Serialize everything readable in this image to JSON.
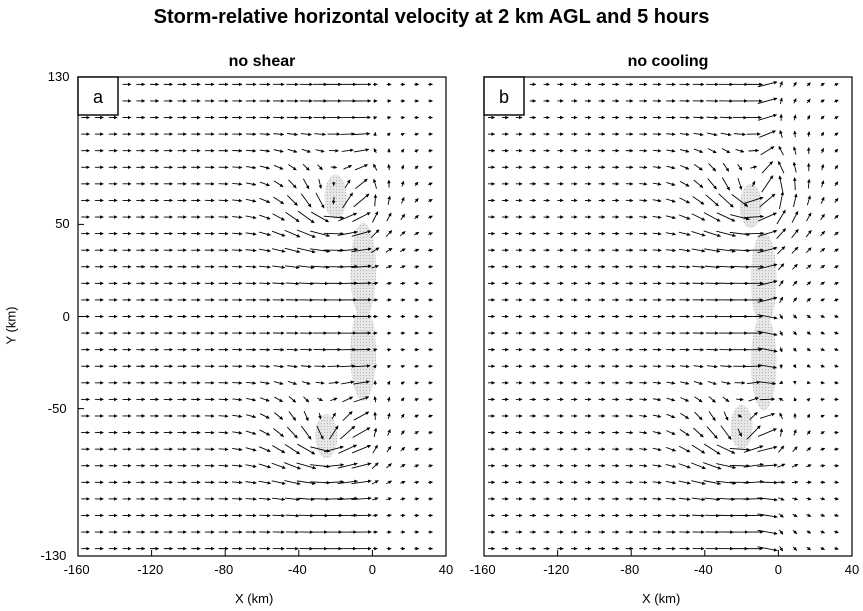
{
  "title": "Storm-relative horizontal velocity at 2 km AGL and 5 hours",
  "ylabel": "Y (km)",
  "chart_data": [
    {
      "type": "quiver",
      "panel_label": "a",
      "title": "no shear",
      "xlabel": "X (km)",
      "ylabel": "Y (km)",
      "xlim": [
        -160,
        40
      ],
      "ylim": [
        -130,
        130
      ],
      "xticks": [
        "-160",
        "-120",
        "-80",
        "-40",
        "0",
        "40"
      ],
      "yticks": [
        "130",
        "50",
        "0",
        "-50",
        "-130"
      ],
      "grid_spacing_km": 8,
      "features": {
        "inflow_to_x": 0,
        "hook_center": [
          -20,
          60
        ],
        "outflow_center": [
          -25,
          -65
        ]
      },
      "shaded_regions": [
        [
          -5,
          25
        ],
        [
          -5,
          -20
        ],
        [
          -25,
          -65
        ],
        [
          -20,
          65
        ]
      ]
    },
    {
      "type": "quiver",
      "panel_label": "b",
      "title": "no cooling",
      "xlabel": "X (km)",
      "xlim": [
        -160,
        40
      ],
      "ylim": [
        -130,
        130
      ],
      "xticks": [
        "-160",
        "-120",
        "-80",
        "-40",
        "0",
        "40"
      ],
      "grid_spacing_km": 8,
      "features": {
        "inflow_to_x": -5,
        "hook_center": [
          -15,
          65
        ],
        "outflow_center": [
          -20,
          -65
        ]
      },
      "shaded_regions": [
        [
          -8,
          20
        ],
        [
          -8,
          -25
        ],
        [
          -20,
          -60
        ],
        [
          -15,
          60
        ]
      ]
    }
  ]
}
